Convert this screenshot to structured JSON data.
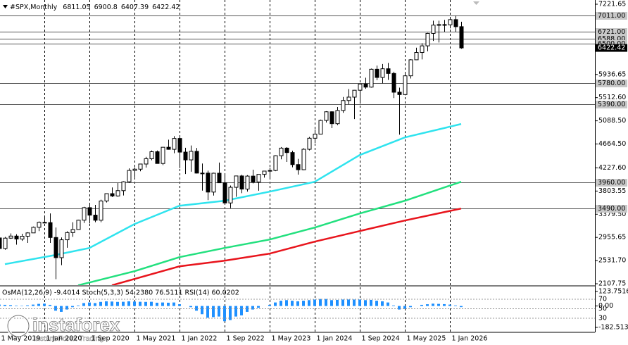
{
  "chart_data": {
    "type": "candlestick",
    "title": "#SPX,Monthly",
    "categories": [
      "1 May 2019",
      "1 Jun 2019",
      "1 Jul 2019",
      "1 Aug 2019",
      "1 Sep 2019",
      "1 Oct 2019",
      "1 Nov 2019",
      "1 Dec 2019",
      "1 Jan 2020",
      "1 Feb 2020",
      "1 Mar 2020",
      "1 Apr 2020",
      "1 May 2020",
      "1 Jun 2020",
      "1 Jul 2020",
      "1 Aug 2020",
      "1 Sep 2020",
      "1 Oct 2020",
      "1 Nov 2020",
      "1 Dec 2020",
      "1 Jan 2021",
      "1 Feb 2021",
      "1 Mar 2021",
      "1 Apr 2021",
      "1 May 2021",
      "1 Jun 2021",
      "1 Jul 2021",
      "1 Aug 2021",
      "1 Sep 2021",
      "1 Oct 2021",
      "1 Nov 2021",
      "1 Dec 2021",
      "1 Jan 2022",
      "1 Feb 2022",
      "1 Mar 2022",
      "1 Apr 2022",
      "1 May 2022",
      "1 Jun 2022",
      "1 Jul 2022",
      "1 Aug 2022",
      "1 Sep 2022",
      "1 Oct 2022",
      "1 Nov 2022",
      "1 Dec 2022",
      "1 Jan 2023",
      "1 Feb 2023",
      "1 Mar 2023",
      "1 Apr 2023",
      "1 May 2023",
      "1 Jun 2023",
      "1 Jul 2023",
      "1 Aug 2023",
      "1 Sep 2023",
      "1 Oct 2023",
      "1 Nov 2023",
      "1 Dec 2023",
      "1 Jan 2024",
      "1 Feb 2024",
      "1 Mar 2024",
      "1 Apr 2024",
      "1 May 2024",
      "1 Jun 2024",
      "1 Jul 2024",
      "1 Aug 2024",
      "1 Sep 2024",
      "1 Oct 2024",
      "1 Nov 2024",
      "1 Dec 2024",
      "1 Jan 2025",
      "1 Feb 2025",
      "1 Mar 2025",
      "1 Apr 2025",
      "1 May 2025",
      "1 Jun 2025",
      "1 Jul 2025",
      "1 Aug 2025",
      "1 Sep 2025",
      "1 Oct 2025",
      "1 Nov 2025",
      "1 Dec 2025",
      "1 Jan 2026",
      "1 Feb 2026",
      "1 Mar 2026"
    ],
    "open": [
      2946,
      2752,
      2942,
      2980,
      2926,
      2977,
      3038,
      3141,
      3231,
      3226,
      2954,
      2585,
      2912,
      3044,
      3100,
      3271,
      3500,
      3363,
      3270,
      3622,
      3756,
      3714,
      3811,
      3973,
      4181,
      4204,
      4298,
      4395,
      4523,
      4308,
      4605,
      4567,
      4766,
      4516,
      4374,
      4530,
      4132,
      4132,
      3785,
      4130,
      3955,
      3586,
      3872,
      4080,
      3840,
      4077,
      3970,
      4109,
      4169,
      4180,
      4450,
      4589,
      4508,
      4288,
      4194,
      4568,
      4770,
      4846,
      5096,
      5254,
      5036,
      5278,
      5460,
      5522,
      5648,
      5762,
      5705,
      6032,
      5882,
      6041,
      5955,
      5612,
      5569,
      5912,
      6205,
      6339,
      6460,
      6688,
      6840,
      6849,
      6845,
      6940,
      6811.05
    ],
    "high": [
      2954,
      2964,
      3028,
      3014,
      3022,
      3050,
      3154,
      3248,
      3337,
      3394,
      3136,
      2955,
      3068,
      3233,
      3280,
      3515,
      3588,
      3550,
      3646,
      3760,
      3870,
      3950,
      3983,
      4218,
      4238,
      4302,
      4429,
      4545,
      4546,
      4608,
      4743,
      4808,
      4818,
      4595,
      4637,
      4593,
      4307,
      4177,
      4140,
      4325,
      4119,
      3905,
      4080,
      4101,
      4094,
      4195,
      4110,
      4170,
      4231,
      4458,
      4608,
      4607,
      4542,
      4393,
      4587,
      4794,
      4932,
      5111,
      5265,
      5264,
      5341,
      5524,
      5670,
      5651,
      5768,
      5878,
      6044,
      6100,
      6129,
      6147,
      5987,
      5695,
      5969,
      6216,
      6427,
      6508,
      6699,
      6920,
      6920,
      6935,
      6990,
      7011,
      6900.8
    ],
    "low": [
      2750,
      2729,
      2927,
      2822,
      2892,
      2855,
      3036,
      3070,
      3214,
      2855,
      2192,
      2447,
      2767,
      2966,
      3095,
      3220,
      3210,
      3234,
      3233,
      3594,
      3694,
      3700,
      3723,
      3955,
      4056,
      4165,
      4233,
      4367,
      4306,
      4279,
      4560,
      4495,
      4223,
      4115,
      4157,
      4125,
      3811,
      3637,
      3721,
      3955,
      3584,
      3491,
      3698,
      3764,
      3794,
      3943,
      3809,
      4049,
      4048,
      4167,
      4385,
      4336,
      4238,
      4104,
      4186,
      4547,
      4683,
      4845,
      5057,
      4954,
      5011,
      5234,
      5390,
      5120,
      5403,
      5674,
      5696,
      5832,
      5774,
      5837,
      5505,
      4835,
      5555,
      5862,
      6201,
      6212,
      6360,
      6551,
      6521,
      6720,
      6780,
      6720,
      6407.39
    ],
    "close": [
      2752,
      2942,
      2980,
      2926,
      2977,
      3038,
      3141,
      3231,
      3226,
      2954,
      2585,
      2912,
      3044,
      3100,
      3271,
      3500,
      3363,
      3270,
      3622,
      3756,
      3714,
      3811,
      3973,
      4181,
      4204,
      4298,
      4395,
      4523,
      4308,
      4605,
      4567,
      4766,
      4516,
      4374,
      4530,
      4132,
      4132,
      3785,
      4130,
      3955,
      3586,
      3872,
      4080,
      3840,
      4077,
      3970,
      4109,
      4169,
      4180,
      4450,
      4589,
      4508,
      4288,
      4194,
      4568,
      4770,
      4846,
      5096,
      5254,
      5036,
      5278,
      5460,
      5522,
      5648,
      5762,
      5705,
      6032,
      5882,
      6041,
      5955,
      5612,
      5569,
      5912,
      6205,
      6339,
      6460,
      6688,
      6840,
      6849,
      6845,
      6940,
      6811,
      6422.42
    ],
    "up_color": "#ffffff",
    "down_color": "#000000",
    "series": [
      {
        "color": "#2fe3ee",
        "x": [
          "1 Jun 2019",
          "1 Mar 2020",
          "1 Sep 2020",
          "1 May 2021",
          "1 Jan 2022",
          "1 Sep 2022",
          "1 May 2023",
          "1 Jan 2024",
          "1 Sep 2024",
          "1 May 2025",
          "1 Mar 2026"
        ],
        "values": [
          2466,
          2634,
          2762,
          3200,
          3535,
          3626,
          3793,
          3973,
          4463,
          4785,
          5030
        ]
      },
      {
        "color": "#22e07e",
        "x": [
          "1 Jul 2020",
          "1 May 2021",
          "1 Jan 2022",
          "1 Sep 2022",
          "1 May 2023",
          "1 Jan 2024",
          "1 Sep 2024",
          "1 May 2025",
          "1 Mar 2026"
        ],
        "values": [
          2079,
          2337,
          2595,
          2762,
          2917,
          3136,
          3394,
          3626,
          3973
        ]
      },
      {
        "color": "#e8141c",
        "x": [
          "1 Jan 2021",
          "1 Jan 2022",
          "1 Sep 2022",
          "1 May 2023",
          "1 Jan 2024",
          "1 Sep 2024",
          "1 May 2025",
          "1 Mar 2026"
        ],
        "values": [
          2079,
          2427,
          2530,
          2659,
          2878,
          3072,
          3265,
          3484
        ]
      }
    ],
    "ylim": [
      2082,
      7299
    ],
    "yticks": [
      7221.65,
      5936.65,
      {
        "value": 5512.6,
        "label": "5512.60"
      },
      {
        "value": 5088.5,
        "label": "5088.50"
      },
      {
        "value": 4664.5,
        "label": "4664.50"
      },
      {
        "value": 4227.6,
        "label": "4227.60"
      },
      3803.55,
      {
        "value": 3379.5,
        "label": "3379.50"
      },
      2955.65,
      {
        "value": 2531.7,
        "label": "2531.70"
      },
      2107.75
    ],
    "levels": [
      {
        "value": 7011,
        "label": "7011.00"
      },
      {
        "value": 6721,
        "label": "6721.00"
      },
      {
        "value": 6588,
        "label": "6588.00"
      },
      {
        "value": 6500,
        "label": "6500.00"
      },
      {
        "value": 5780,
        "label": "5780.00"
      },
      {
        "value": 5390,
        "label": "5390.00"
      },
      {
        "value": 3960,
        "label": "3960.00"
      },
      {
        "value": 3490,
        "label": "3490.00"
      }
    ],
    "xticks": [
      "1 May 2019",
      "1 Jan 2020",
      "1 Sep 2020",
      "1 May 2021",
      "1 Jan 2022",
      "1 Sep 2022",
      "1 May 2023",
      "1 Jan 2024",
      "1 Sep 2024",
      "1 May 2025",
      "1 Jan 2026"
    ],
    "indicator": {
      "title": "OsMA(12,26,9) -9.4014  Stoch(5,3,3) 54.2380 76.5111  RSI(14) 60.0202",
      "color": "#1e90ff",
      "values": [
        12,
        10,
        8,
        4,
        3,
        6,
        12,
        18,
        20,
        10,
        -40,
        -50,
        -30,
        -10,
        5,
        25,
        30,
        25,
        35,
        40,
        38,
        35,
        36,
        40,
        38,
        36,
        35,
        36,
        28,
        30,
        28,
        30,
        15,
        0,
        -10,
        -40,
        -70,
        -100,
        -95,
        -90,
        -130,
        -120,
        -90,
        -80,
        -50,
        -30,
        -15,
        0,
        10,
        30,
        45,
        50,
        45,
        40,
        45,
        50,
        55,
        60,
        60,
        50,
        52,
        55,
        55,
        55,
        55,
        50,
        52,
        45,
        40,
        30,
        5,
        -30,
        -25,
        -10,
        0,
        10,
        15,
        20,
        18,
        16,
        12,
        5,
        -9.4014
      ],
      "ylim": [
        -224.6,
        165.8
      ],
      "yticks": [
        123.7516,
        {
          "value": 0,
          "label": "0.00"
        },
        -182.5137
      ],
      "levels": [
        70,
        50,
        30
      ]
    },
    "watermark": {
      "name": "instaforex",
      "tagline": "Instant Forex Trading"
    }
  }
}
